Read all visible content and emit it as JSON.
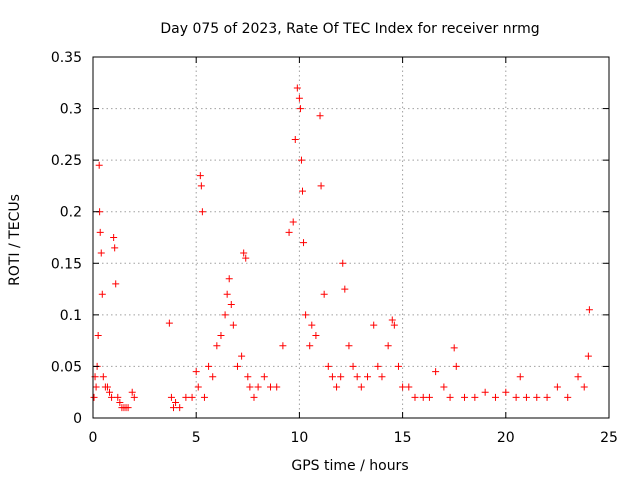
{
  "chart_data": {
    "type": "scatter",
    "title": "Day 075 of 2023, Rate Of TEC Index for receiver nrmg",
    "xlabel": "GPS time / hours",
    "ylabel": "ROTI / TECUs",
    "xlim": [
      0,
      25
    ],
    "ylim": [
      0,
      0.35
    ],
    "x_ticks": [
      "0",
      "5",
      "10",
      "15",
      "20",
      "25"
    ],
    "y_ticks": [
      "0",
      "0.05",
      "0.1",
      "0.15",
      "0.2",
      "0.25",
      "0.3",
      "0.35"
    ],
    "grid": true,
    "marker": "plus",
    "color": "#ff0000",
    "series": [
      {
        "x": [
          0.05,
          0.1,
          0.15,
          0.2,
          0.25,
          0.3,
          0.32,
          0.35,
          0.4,
          0.45,
          0.5,
          0.6,
          0.7,
          0.8,
          0.9,
          1.0,
          1.05,
          1.1,
          1.2,
          1.3,
          1.4,
          1.5,
          1.6,
          1.7,
          1.9,
          2.0,
          3.7,
          3.8,
          3.9,
          4.0,
          4.2,
          4.5,
          4.8,
          5.0,
          5.1,
          5.2,
          5.25,
          5.3,
          5.4,
          5.6,
          5.8,
          6.0,
          6.2,
          6.4,
          6.5,
          6.6,
          6.7,
          6.8,
          7.0,
          7.2,
          7.3,
          7.4,
          7.5,
          7.6,
          7.8,
          8.0,
          8.3,
          8.6,
          8.9,
          9.2,
          9.5,
          9.7,
          9.8,
          9.9,
          10.0,
          10.05,
          10.1,
          10.15,
          10.2,
          10.3,
          10.5,
          10.6,
          10.8,
          11.0,
          11.05,
          11.2,
          11.4,
          11.6,
          11.8,
          12.0,
          12.1,
          12.2,
          12.4,
          12.6,
          12.8,
          13.0,
          13.3,
          13.6,
          13.8,
          14.0,
          14.3,
          14.5,
          14.6,
          14.8,
          15.0,
          15.3,
          15.6,
          16.0,
          16.3,
          16.6,
          17.0,
          17.3,
          17.5,
          17.6,
          18.0,
          18.5,
          19.0,
          19.5,
          20.0,
          20.5,
          20.7,
          21.0,
          21.5,
          22.0,
          22.5,
          23.0,
          23.5,
          23.8,
          24.0,
          24.05
        ],
        "y": [
          0.02,
          0.04,
          0.03,
          0.05,
          0.08,
          0.245,
          0.2,
          0.18,
          0.16,
          0.12,
          0.04,
          0.03,
          0.03,
          0.025,
          0.02,
          0.175,
          0.165,
          0.13,
          0.02,
          0.015,
          0.01,
          0.01,
          0.01,
          0.01,
          0.025,
          0.02,
          0.092,
          0.02,
          0.01,
          0.015,
          0.01,
          0.02,
          0.02,
          0.045,
          0.03,
          0.235,
          0.225,
          0.2,
          0.02,
          0.05,
          0.04,
          0.07,
          0.08,
          0.1,
          0.12,
          0.135,
          0.11,
          0.09,
          0.05,
          0.06,
          0.16,
          0.155,
          0.04,
          0.03,
          0.02,
          0.03,
          0.04,
          0.03,
          0.03,
          0.07,
          0.18,
          0.19,
          0.27,
          0.32,
          0.31,
          0.3,
          0.25,
          0.22,
          0.17,
          0.1,
          0.07,
          0.09,
          0.08,
          0.293,
          0.225,
          0.12,
          0.05,
          0.04,
          0.03,
          0.04,
          0.15,
          0.125,
          0.07,
          0.05,
          0.04,
          0.03,
          0.04,
          0.09,
          0.05,
          0.04,
          0.07,
          0.095,
          0.09,
          0.05,
          0.03,
          0.03,
          0.02,
          0.02,
          0.02,
          0.045,
          0.03,
          0.02,
          0.068,
          0.05,
          0.02,
          0.02,
          0.025,
          0.02,
          0.025,
          0.02,
          0.04,
          0.02,
          0.02,
          0.02,
          0.03,
          0.02,
          0.04,
          0.03,
          0.06,
          0.105
        ]
      }
    ]
  }
}
